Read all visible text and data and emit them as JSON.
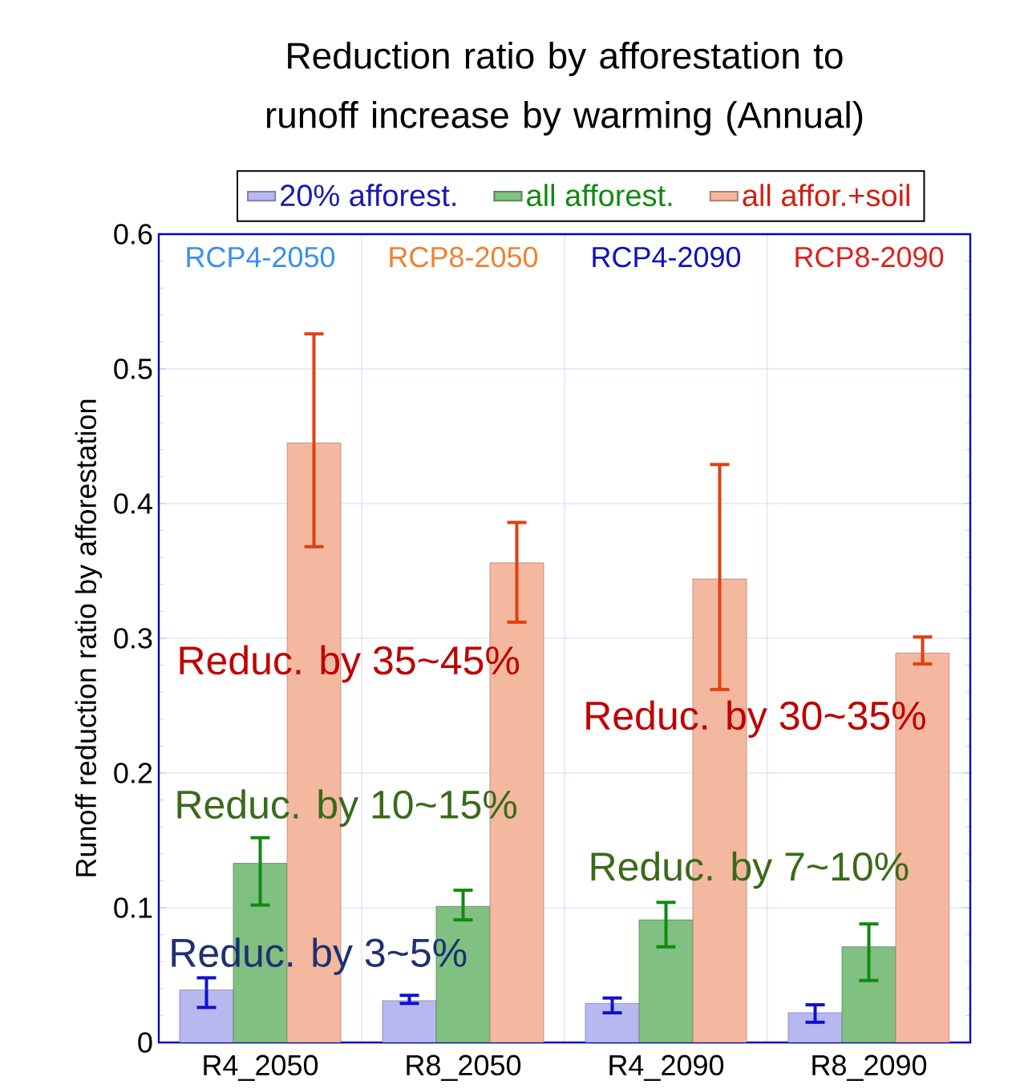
{
  "chart_data": {
    "type": "bar",
    "title": "Reduction ratio by afforestation to runoff increase by warming (Annual)",
    "ylabel": "Runoff reduction ratio by afforestation",
    "categories": [
      "R4_2050",
      "R8_2050",
      "R4_2090",
      "R8_2090"
    ],
    "series": [
      {
        "name": "20% afforest.",
        "color": "#b8b8f0",
        "values": [
          0.039,
          0.031,
          0.029,
          0.022
        ],
        "errors": [
          [
            0.026,
            0.048
          ],
          [
            0.029,
            0.035
          ],
          [
            0.022,
            0.033
          ],
          [
            0.015,
            0.028
          ]
        ]
      },
      {
        "name": "all afforest.",
        "color": "#80c080",
        "values": [
          0.133,
          0.101,
          0.091,
          0.071
        ],
        "errors": [
          [
            0.102,
            0.152
          ],
          [
            0.091,
            0.113
          ],
          [
            0.071,
            0.104
          ],
          [
            0.046,
            0.088
          ]
        ]
      },
      {
        "name": "all affor.+soil",
        "color": "#f4b8a0",
        "values": [
          0.445,
          0.356,
          0.344,
          0.289
        ],
        "errors": [
          [
            0.368,
            0.526
          ],
          [
            0.312,
            0.386
          ],
          [
            0.262,
            0.429
          ],
          [
            0.281,
            0.301
          ]
        ]
      }
    ],
    "ylim": [
      0,
      0.6
    ],
    "yticks": [
      0,
      0.1,
      0.2,
      0.3,
      0.4,
      0.5,
      0.6
    ],
    "grid": true,
    "legend": "top",
    "annotations": [
      "RCP4-2050",
      "RCP8-2050",
      "RCP4-2090",
      "RCP8-2090",
      "Reduc. by 35~45%",
      "Reduc. by 30~35%",
      "Reduc. by 10~15%",
      "Reduc. by 7~10%",
      "Reduc. by 3~5%"
    ]
  }
}
